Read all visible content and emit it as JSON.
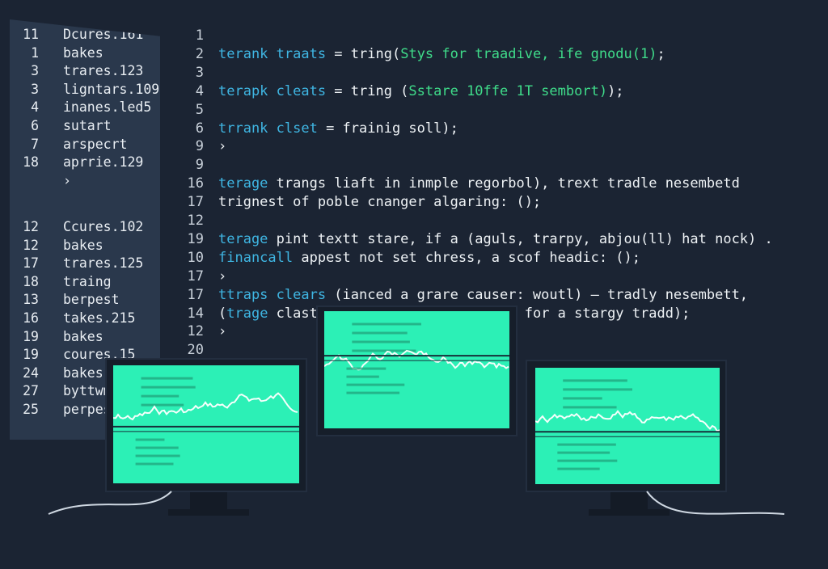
{
  "left_panel": {
    "group1": [
      {
        "n": "11",
        "t": "Dcures.161"
      },
      {
        "n": "1",
        "t": "bakes"
      },
      {
        "n": "3",
        "t": "trares.123"
      },
      {
        "n": "3",
        "t": "ligntars.109"
      },
      {
        "n": "4",
        "t": "inanes.led5"
      },
      {
        "n": "6",
        "t": "sutart"
      },
      {
        "n": "7",
        "t": "arspecrt"
      },
      {
        "n": "18",
        "t": "aprrie.129"
      },
      {
        "n": "",
        "t": "›"
      }
    ],
    "group2": [
      {
        "n": "12",
        "t": "Ccures.102"
      },
      {
        "n": "12",
        "t": "bakes"
      },
      {
        "n": "17",
        "t": "trares.125"
      },
      {
        "n": "18",
        "t": "traing"
      },
      {
        "n": "13",
        "t": "berpest"
      },
      {
        "n": "16",
        "t": "takes.215"
      },
      {
        "n": "19",
        "t": "bakes"
      },
      {
        "n": "19",
        "t": "coures.15"
      },
      {
        "n": "24",
        "t": "bakes"
      },
      {
        "n": "27",
        "t": "byttwm"
      },
      {
        "n": "25",
        "t": "perpes"
      }
    ]
  },
  "code": [
    {
      "n": "1",
      "tokens": []
    },
    {
      "n": "2",
      "tokens": [
        {
          "t": "terank traats",
          "c": "kw"
        },
        {
          "t": " = tring(",
          "c": "pl"
        },
        {
          "t": "Stys for traadive, ife gnodu(1)",
          "c": "str"
        },
        {
          "t": ";",
          "c": "pl"
        }
      ]
    },
    {
      "n": "3",
      "tokens": []
    },
    {
      "n": "4",
      "tokens": [
        {
          "t": "terapk cleats",
          "c": "kw"
        },
        {
          "t": " = tring (",
          "c": "pl"
        },
        {
          "t": "Sstare 10ffe 1T sembort)",
          "c": "str"
        },
        {
          "t": ");",
          "c": "pl"
        }
      ]
    },
    {
      "n": "5",
      "tokens": []
    },
    {
      "n": "6",
      "tokens": [
        {
          "t": "trrank clset",
          "c": "kw"
        },
        {
          "t": " = frainig soll);",
          "c": "pl"
        }
      ]
    },
    {
      "n": "9",
      "tokens": [
        {
          "t": "›",
          "c": "pl"
        }
      ]
    },
    {
      "n": "9",
      "tokens": []
    },
    {
      "n": "16",
      "tokens": [
        {
          "t": "terage",
          "c": "kw"
        },
        {
          "t": " trangs liaft in inmple regorbol), trext tradle nesembetd",
          "c": "pl"
        }
      ]
    },
    {
      "n": "17",
      "tokens": [
        {
          "t": "trignest of poble cnanger algaring: ();",
          "c": "pl"
        }
      ]
    },
    {
      "n": "12",
      "tokens": []
    },
    {
      "n": "19",
      "tokens": [
        {
          "t": "terage",
          "c": "kw"
        },
        {
          "t": " pint textt stare, if a (aguls, trarpy, abjou(ll) hat nock) .",
          "c": "pl"
        }
      ]
    },
    {
      "n": "10",
      "tokens": [
        {
          "t": "financall",
          "c": "kw"
        },
        {
          "t": " appest not set chress, a scof headic: ();",
          "c": "pl"
        }
      ]
    },
    {
      "n": "17",
      "tokens": [
        {
          "t": "›",
          "c": "pl"
        }
      ]
    },
    {
      "n": "17",
      "tokens": [
        {
          "t": "ttraps clears",
          "c": "kw"
        },
        {
          "t": " (ianced a grare causer: woutl) – tradly nesembett,",
          "c": "pl"
        }
      ]
    },
    {
      "n": "14",
      "tokens": [
        {
          "t": "(",
          "c": "pl"
        },
        {
          "t": "trage",
          "c": "kw"
        },
        {
          "t": " clast                         for a stargy tradd);",
          "c": "pl"
        }
      ]
    },
    {
      "n": "12",
      "tokens": [
        {
          "t": "›",
          "c": "pl"
        }
      ]
    },
    {
      "n": "20",
      "tokens": []
    }
  ],
  "colors": {
    "background": "#1b2433",
    "panel": "#2a384c",
    "keyword": "#3fb6e3",
    "string": "#3fdc8a",
    "screen": "#2cf0b6"
  },
  "monitors": [
    "left-monitor",
    "center-monitor",
    "right-monitor"
  ]
}
